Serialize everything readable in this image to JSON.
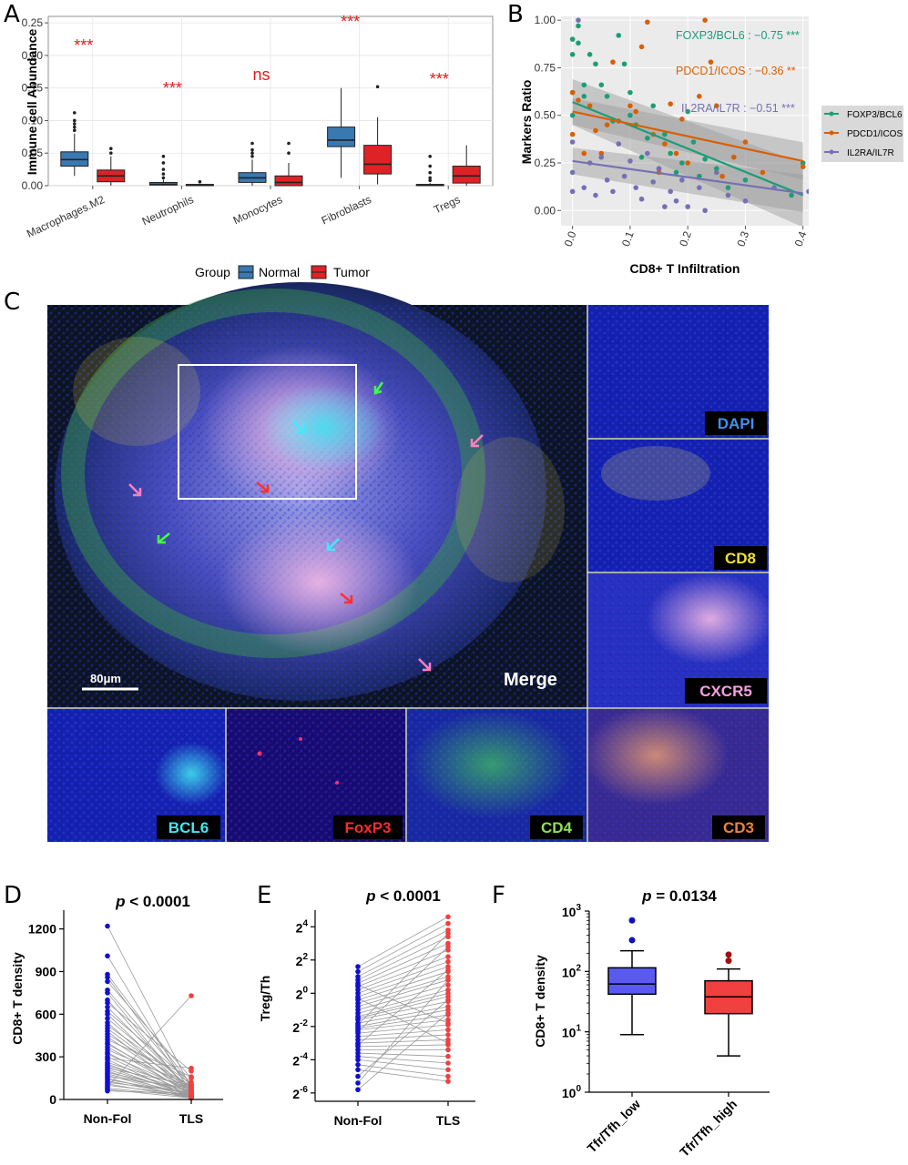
{
  "panel_labels": [
    "A",
    "B",
    "C",
    "D",
    "E",
    "F"
  ],
  "panelA": {
    "ylabel": "Immune cell Abundance",
    "yticks": [
      "0.00",
      "0.05",
      "0.10",
      "0.15",
      "0.20",
      "0.25"
    ],
    "legend_title": "Group",
    "legend_items": [
      "Normal",
      "Tumor"
    ],
    "annotations": [
      "***",
      "***",
      "ns",
      "***",
      "***"
    ]
  },
  "panelB": {
    "ylabel": "Markers Ratio",
    "xlabel": "CD8+ T Infiltration",
    "yticks": [
      "0.00",
      "0.25",
      "0.50",
      "0.75",
      "1.00"
    ],
    "xticks": [
      "0.0",
      "0.1",
      "0.2",
      "0.3",
      "0.4"
    ],
    "annotations": [
      "FOXP3/BCL6 : −0.75 ***",
      "PDCD1/ICOS : −0.36 **",
      "IL2RA/IL7R : −0.51 ***"
    ],
    "legend_items": [
      "FOXP3/BCL6",
      "PDCD1/ICOS",
      "IL2RA/IL7R"
    ]
  },
  "panelC": {
    "scale_bar": "80μm",
    "merge_label": "Merge",
    "channels": [
      "DAPI",
      "CD8",
      "CXCR5",
      "BCL6",
      "FoxP3",
      "CD4",
      "CD3"
    ]
  },
  "panelD": {
    "title_p": "p",
    "title_rest": " < 0.0001",
    "ylabel": "CD8+ T density",
    "yticks": [
      "0",
      "300",
      "600",
      "900",
      "1200"
    ],
    "xticks": [
      "Non-Fol",
      "TLS"
    ]
  },
  "panelE": {
    "title_p": "p",
    "title_rest": " < 0.0001",
    "ylabel": "Treg/Th",
    "ytick_base": "2",
    "ytick_exps": [
      "-6",
      "-4",
      "-2",
      "0",
      "2",
      "4"
    ],
    "xticks": [
      "Non-Fol",
      "TLS"
    ]
  },
  "panelF": {
    "title_p": "p",
    "title_rest": " = 0.0134",
    "ylabel": "CD8+ T density",
    "ytick_base": "10",
    "ytick_exps": [
      "0",
      "1",
      "2",
      "3"
    ],
    "xticks": [
      "Tfr/Tfh_low",
      "Tfr/Tfh_high"
    ]
  },
  "colors": {
    "normal": "#3a78b0",
    "tumor": "#de2226",
    "foxp3": "#1b9e77",
    "pdcd1": "#d95f02",
    "il2ra": "#7570b3",
    "nonfol": "#1010d0",
    "tls": "#f04040",
    "boxF1": "#5a5af0",
    "boxF2": "#f04040"
  },
  "chart_data": [
    {
      "type": "box",
      "panel": "A",
      "categories": [
        "Macrophages.M2",
        "Neutrophils",
        "Monocytes",
        "Fibroblasts",
        "Tregs"
      ],
      "ylabel": "Immune cell Abundance",
      "ylim": [
        0,
        0.26
      ],
      "legend": "bottom",
      "series": [
        {
          "name": "Normal",
          "boxes": [
            {
              "min": 0.015,
              "q1": 0.03,
              "median": 0.04,
              "q3": 0.052,
              "max": 0.08,
              "outliers": [
                0.085,
                0.09,
                0.095,
                0.1,
                0.112
              ]
            },
            {
              "min": 0.0,
              "q1": 0.001,
              "median": 0.002,
              "q3": 0.005,
              "max": 0.009,
              "outliers": [
                0.012,
                0.018,
                0.025,
                0.035,
                0.045
              ]
            },
            {
              "min": 0.0,
              "q1": 0.005,
              "median": 0.012,
              "q3": 0.02,
              "max": 0.04,
              "outliers": [
                0.045,
                0.05,
                0.055,
                0.065
              ]
            },
            {
              "min": 0.012,
              "q1": 0.06,
              "median": 0.07,
              "q3": 0.09,
              "max": 0.15,
              "outliers": []
            },
            {
              "min": 0.0,
              "q1": 0.0,
              "median": 0.001,
              "q3": 0.002,
              "max": 0.004,
              "outliers": [
                0.008,
                0.012,
                0.02,
                0.03,
                0.045
              ]
            }
          ]
        },
        {
          "name": "Tumor",
          "boxes": [
            {
              "min": 0.0,
              "q1": 0.006,
              "median": 0.015,
              "q3": 0.024,
              "max": 0.045,
              "outliers": [
                0.05,
                0.057
              ]
            },
            {
              "min": 0.0,
              "q1": 0.0,
              "median": 0.001,
              "q3": 0.002,
              "max": 0.003,
              "outliers": [
                0.006
              ]
            },
            {
              "min": 0.0,
              "q1": 0.0,
              "median": 0.005,
              "q3": 0.015,
              "max": 0.035,
              "outliers": [
                0.05,
                0.065
              ]
            },
            {
              "min": 0.002,
              "q1": 0.018,
              "median": 0.033,
              "q3": 0.062,
              "max": 0.105,
              "outliers": [
                0.152
              ]
            },
            {
              "min": 0.0,
              "q1": 0.004,
              "median": 0.015,
              "q3": 0.03,
              "max": 0.062,
              "outliers": []
            }
          ]
        }
      ],
      "annotations": [
        "***",
        "***",
        "ns",
        "***",
        "***"
      ]
    },
    {
      "type": "scatter",
      "panel": "B",
      "xlabel": "CD8+ T Infiltration",
      "ylabel": "Markers Ratio",
      "xlim": [
        -0.02,
        0.41
      ],
      "ylim": [
        -0.08,
        1.02
      ],
      "legend": "right",
      "series": [
        {
          "name": "FOXP3/BCL6",
          "fit": [
            [
              0.0,
              0.57
            ],
            [
              0.4,
              0.08
            ]
          ],
          "points": [
            [
              0.0,
              0.9
            ],
            [
              0.0,
              0.82
            ],
            [
              0.0,
              0.62
            ],
            [
              0.0,
              0.5
            ],
            [
              0.01,
              0.97
            ],
            [
              0.01,
              0.88
            ],
            [
              0.02,
              0.66
            ],
            [
              0.02,
              0.6
            ],
            [
              0.03,
              0.82
            ],
            [
              0.04,
              0.77
            ],
            [
              0.05,
              0.66
            ],
            [
              0.06,
              0.6
            ],
            [
              0.07,
              0.47
            ],
            [
              0.08,
              0.92
            ],
            [
              0.09,
              0.77
            ],
            [
              0.1,
              0.62
            ],
            [
              0.1,
              0.5
            ],
            [
              0.11,
              0.45
            ],
            [
              0.12,
              0.28
            ],
            [
              0.13,
              0.38
            ],
            [
              0.14,
              0.55
            ],
            [
              0.15,
              0.22
            ],
            [
              0.16,
              0.4
            ],
            [
              0.17,
              0.3
            ],
            [
              0.18,
              0.2
            ],
            [
              0.19,
              0.25
            ],
            [
              0.2,
              0.52
            ],
            [
              0.21,
              0.36
            ],
            [
              0.22,
              0.18
            ],
            [
              0.23,
              0.27
            ],
            [
              0.25,
              0.22
            ],
            [
              0.27,
              0.12
            ],
            [
              0.3,
              0.16
            ],
            [
              0.38,
              0.08
            ],
            [
              0.4,
              0.25
            ]
          ]
        },
        {
          "name": "PDCD1/ICOS",
          "fit": [
            [
              0.0,
              0.52
            ],
            [
              0.4,
              0.26
            ]
          ],
          "points": [
            [
              0.0,
              0.62
            ],
            [
              0.0,
              0.4
            ],
            [
              0.01,
              0.58
            ],
            [
              0.02,
              0.3
            ],
            [
              0.03,
              0.55
            ],
            [
              0.04,
              0.42
            ],
            [
              0.05,
              0.3
            ],
            [
              0.06,
              0.45
            ],
            [
              0.07,
              0.78
            ],
            [
              0.08,
              0.47
            ],
            [
              0.1,
              0.55
            ],
            [
              0.11,
              0.52
            ],
            [
              0.12,
              0.86
            ],
            [
              0.13,
              0.99
            ],
            [
              0.14,
              0.4
            ],
            [
              0.15,
              0.2
            ],
            [
              0.16,
              0.35
            ],
            [
              0.17,
              0.56
            ],
            [
              0.18,
              0.3
            ],
            [
              0.19,
              0.48
            ],
            [
              0.2,
              0.25
            ],
            [
              0.22,
              0.6
            ],
            [
              0.23,
              1.0
            ],
            [
              0.24,
              0.78
            ],
            [
              0.25,
              0.55
            ],
            [
              0.26,
              0.18
            ],
            [
              0.28,
              0.28
            ],
            [
              0.3,
              0.36
            ],
            [
              0.33,
              0.2
            ],
            [
              0.4,
              0.23
            ]
          ]
        },
        {
          "name": "IL2RA/IL7R",
          "fit": [
            [
              0.0,
              0.26
            ],
            [
              0.4,
              0.09
            ]
          ],
          "points": [
            [
              0.0,
              0.36
            ],
            [
              0.0,
              0.2
            ],
            [
              0.0,
              0.1
            ],
            [
              0.01,
              1.0
            ],
            [
              0.02,
              0.12
            ],
            [
              0.03,
              0.25
            ],
            [
              0.04,
              0.08
            ],
            [
              0.05,
              0.28
            ],
            [
              0.06,
              0.16
            ],
            [
              0.07,
              0.1
            ],
            [
              0.08,
              0.35
            ],
            [
              0.09,
              0.18
            ],
            [
              0.1,
              0.26
            ],
            [
              0.11,
              0.12
            ],
            [
              0.12,
              0.06
            ],
            [
              0.13,
              0.3
            ],
            [
              0.14,
              0.15
            ],
            [
              0.15,
              0.22
            ],
            [
              0.16,
              0.02
            ],
            [
              0.17,
              0.1
            ],
            [
              0.18,
              0.05
            ],
            [
              0.19,
              0.16
            ],
            [
              0.2,
              0.02
            ],
            [
              0.22,
              0.12
            ],
            [
              0.23,
              0.0
            ],
            [
              0.25,
              0.2
            ],
            [
              0.27,
              0.08
            ],
            [
              0.3,
              0.05
            ],
            [
              0.35,
              0.12
            ],
            [
              0.41,
              0.1
            ]
          ]
        }
      ]
    },
    {
      "type": "line",
      "panel": "D",
      "categories": [
        "Non-Fol",
        "TLS"
      ],
      "ylabel": "CD8+ T density",
      "ylim": [
        0,
        1300
      ],
      "pairs": [
        [
          1220,
          80
        ],
        [
          1010,
          40
        ],
        [
          880,
          100
        ],
        [
          860,
          60
        ],
        [
          830,
          150
        ],
        [
          770,
          90
        ],
        [
          750,
          30
        ],
        [
          700,
          50
        ],
        [
          680,
          200
        ],
        [
          650,
          60
        ],
        [
          620,
          120
        ],
        [
          600,
          40
        ],
        [
          570,
          80
        ],
        [
          540,
          30
        ],
        [
          520,
          110
        ],
        [
          500,
          60
        ],
        [
          480,
          20
        ],
        [
          460,
          90
        ],
        [
          440,
          50
        ],
        [
          420,
          160
        ],
        [
          400,
          30
        ],
        [
          390,
          70
        ],
        [
          370,
          40
        ],
        [
          350,
          100
        ],
        [
          330,
          20
        ],
        [
          320,
          60
        ],
        [
          300,
          40
        ],
        [
          290,
          220
        ],
        [
          280,
          10
        ],
        [
          260,
          80
        ],
        [
          250,
          30
        ],
        [
          240,
          50
        ],
        [
          230,
          20
        ],
        [
          220,
          100
        ],
        [
          210,
          40
        ],
        [
          200,
          10
        ],
        [
          190,
          60
        ],
        [
          180,
          30
        ],
        [
          170,
          20
        ],
        [
          160,
          80
        ],
        [
          150,
          10
        ],
        [
          140,
          40
        ],
        [
          130,
          20
        ],
        [
          120,
          50
        ],
        [
          110,
          10
        ],
        [
          100,
          30
        ],
        [
          90,
          730
        ],
        [
          80,
          20
        ],
        [
          70,
          10
        ],
        [
          60,
          40
        ]
      ]
    },
    {
      "type": "line",
      "panel": "E",
      "categories": [
        "Non-Fol",
        "TLS"
      ],
      "ylabel": "Treg/Th",
      "yscale": "log2",
      "ylim": [
        -6.5,
        5
      ],
      "pairs": [
        [
          1.6,
          4.6
        ],
        [
          1.3,
          4.2
        ],
        [
          1.0,
          3.8
        ],
        [
          0.8,
          3.4
        ],
        [
          0.6,
          3.0
        ],
        [
          0.4,
          2.6
        ],
        [
          0.2,
          2.2
        ],
        [
          0.0,
          1.9
        ],
        [
          -0.2,
          1.6
        ],
        [
          -0.4,
          1.3
        ],
        [
          -0.6,
          1.0
        ],
        [
          -0.8,
          0.8
        ],
        [
          -1.0,
          0.5
        ],
        [
          -1.2,
          0.2
        ],
        [
          -1.4,
          0.0
        ],
        [
          -1.5,
          -0.2
        ],
        [
          -1.6,
          -0.5
        ],
        [
          -1.8,
          -0.8
        ],
        [
          -2.0,
          -1.0
        ],
        [
          -2.1,
          -1.3
        ],
        [
          -2.2,
          -1.6
        ],
        [
          -2.4,
          -1.9
        ],
        [
          -2.6,
          -2.2
        ],
        [
          -2.8,
          -2.5
        ],
        [
          -3.0,
          -2.8
        ],
        [
          -3.2,
          -3.1
        ],
        [
          -3.4,
          -3.4
        ],
        [
          -3.6,
          -3.8
        ],
        [
          -3.8,
          -4.2
        ],
        [
          -4.0,
          -4.6
        ],
        [
          -4.3,
          -5.0
        ],
        [
          -4.6,
          -5.3
        ],
        [
          -5.0,
          -0.4
        ],
        [
          -5.4,
          0.8
        ],
        [
          -5.8,
          -1.2
        ],
        [
          -2.3,
          2.8
        ],
        [
          -1.9,
          3.6
        ],
        [
          -0.3,
          -3.0
        ],
        [
          0.5,
          -1.8
        ],
        [
          -3.1,
          1.4
        ]
      ]
    },
    {
      "type": "box",
      "panel": "F",
      "categories": [
        "Tfr/Tfh_low",
        "Tfr/Tfh_high"
      ],
      "ylabel": "CD8+ T density",
      "yscale": "log10",
      "ylim": [
        1,
        1000
      ],
      "boxes": [
        {
          "min": 9,
          "q1": 42,
          "median": 62,
          "q3": 115,
          "max": 220,
          "outliers": [
            330,
            700
          ]
        },
        {
          "min": 4,
          "q1": 20,
          "median": 38,
          "q3": 70,
          "max": 110,
          "outliers": [
            150,
            190
          ]
        }
      ]
    }
  ]
}
